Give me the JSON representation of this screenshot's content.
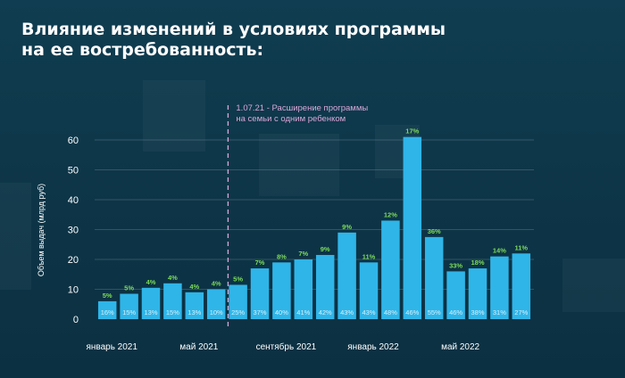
{
  "title_lines": [
    "Влияние изменений в условиях программы",
    "на ее востребованность:"
  ],
  "colors": {
    "background": "#0e3a4d",
    "bar": "#2fb5e8",
    "pct_top": "#7ddc5a",
    "pct_inside": "#d8f1fb",
    "annotation": "#d9a8d9",
    "axis_text": "#ffffff"
  },
  "chart_data": {
    "type": "bar",
    "ylabel": "Объем выдач (млрд руб)",
    "ylim": [
      0,
      66
    ],
    "yticks": [
      0,
      10,
      20,
      30,
      40,
      50,
      60
    ],
    "grid": true,
    "x_tick_labels": [
      {
        "index": 0,
        "label": "январь 2021"
      },
      {
        "index": 4,
        "label": "май 2021"
      },
      {
        "index": 8,
        "label": "сентябрь 2021"
      },
      {
        "index": 12,
        "label": "январь 2022"
      },
      {
        "index": 16,
        "label": "май 2022"
      }
    ],
    "annotation": {
      "after_index": 5,
      "lines": [
        "1.07.21 - Расширение программы",
        "на семьи с одним ребенком"
      ]
    },
    "values": [
      6,
      8.5,
      10.5,
      12,
      9,
      10,
      11.5,
      17,
      19,
      20,
      21.5,
      29,
      19,
      33,
      61,
      27.5,
      16,
      17,
      21,
      22
    ],
    "top_labels": [
      "5%",
      "5%",
      "4%",
      "4%",
      "4%",
      "4%",
      "5%",
      "7%",
      "8%",
      "7%",
      "9%",
      "9%",
      "11%",
      "12%",
      "17%",
      "36%",
      "33%",
      "18%",
      "14%",
      "11%"
    ],
    "inside_labels": [
      "16%",
      "15%",
      "13%",
      "15%",
      "13%",
      "10%",
      "25%",
      "37%",
      "40%",
      "41%",
      "42%",
      "43%",
      "43%",
      "48%",
      "46%",
      "55%",
      "46%",
      "38%",
      "31%",
      "27%"
    ]
  }
}
